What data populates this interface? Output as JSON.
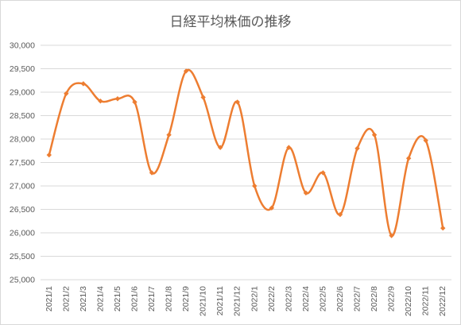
{
  "chart_data": {
    "type": "line",
    "title": "日経平均株価の推移",
    "xlabel": "",
    "ylabel": "",
    "ylim": [
      25000,
      30000
    ],
    "ytick_step": 500,
    "grid": true,
    "legend": "none",
    "smooth": true,
    "color": "#ed7d31",
    "categories": [
      "2021/1",
      "2021/2",
      "2021/3",
      "2021/4",
      "2021/5",
      "2021/6",
      "2021/7",
      "2021/8",
      "2021/9",
      "2021/10",
      "2021/11",
      "2021/12",
      "2022/1",
      "2022/2",
      "2022/3",
      "2022/4",
      "2022/5",
      "2022/6",
      "2022/7",
      "2022/8",
      "2022/9",
      "2022/10",
      "2022/11",
      "2022/12"
    ],
    "series": [
      {
        "values": [
          27660,
          28970,
          29180,
          28810,
          28860,
          28790,
          27280,
          28090,
          29450,
          28890,
          27820,
          28790,
          27000,
          26530,
          27820,
          26850,
          27280,
          26390,
          27800,
          28090,
          25940,
          27590,
          27970,
          26100
        ]
      }
    ]
  }
}
